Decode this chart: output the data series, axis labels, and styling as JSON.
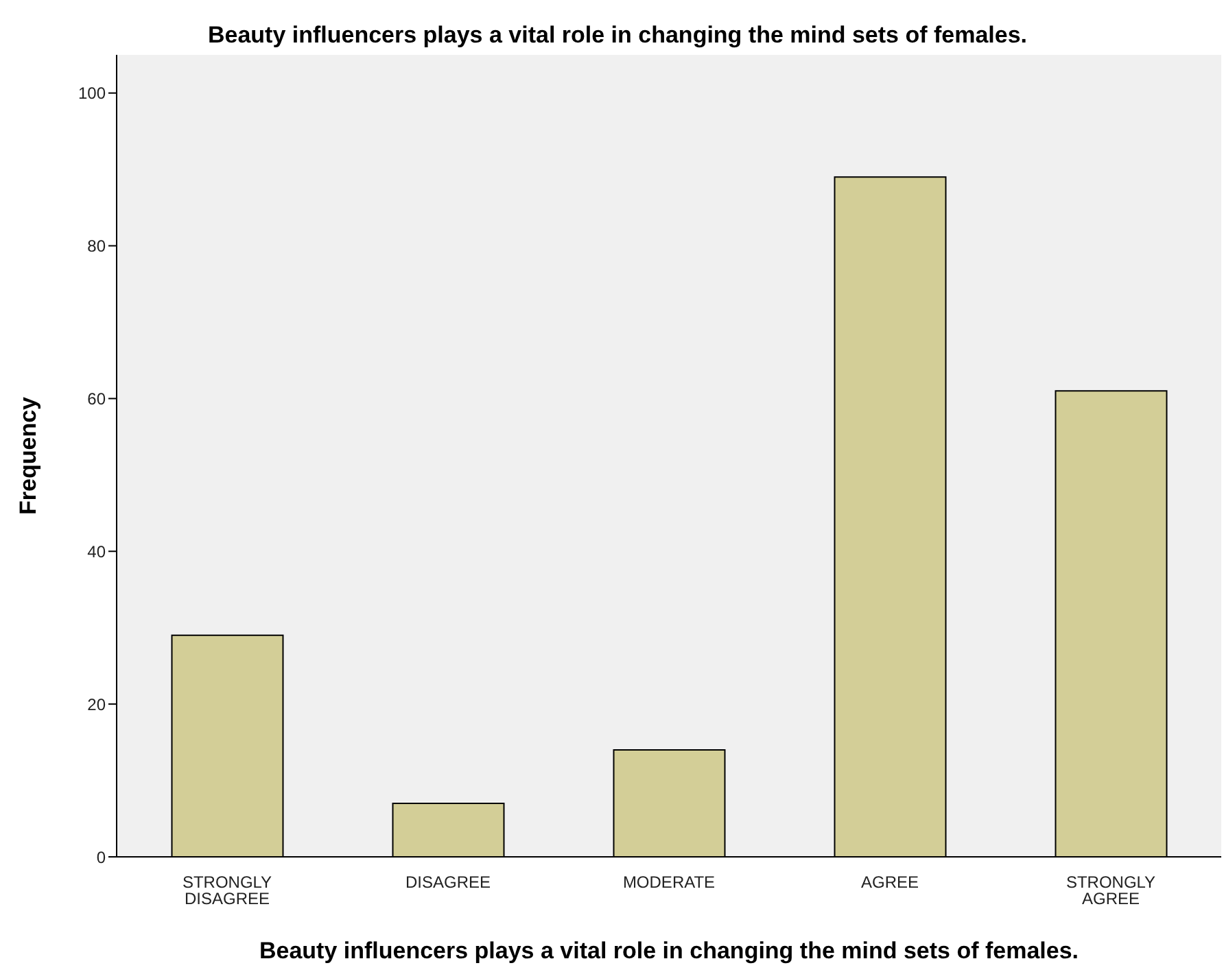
{
  "chart_data": {
    "type": "bar",
    "title": "Beauty influencers plays a vital role in changing the mind sets of females.",
    "xlabel": "Beauty influencers plays a vital role in changing the mind sets of females.",
    "ylabel": "Frequency",
    "categories": [
      "STRONGLY DISAGREE",
      "DISAGREE",
      "MODERATE",
      "AGREE",
      "STRONGLY AGREE"
    ],
    "values": [
      29,
      7,
      14,
      89,
      61
    ],
    "color": "#d3ce97",
    "ylim": [
      0,
      105
    ],
    "yticks": [
      0,
      20,
      40,
      60,
      80,
      100
    ],
    "grid": false
  }
}
